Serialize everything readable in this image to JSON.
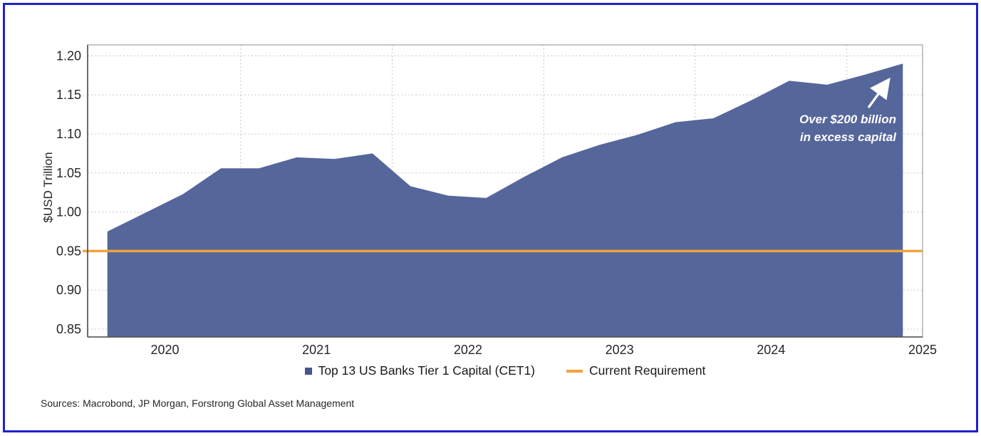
{
  "frame_color": "#2020CE",
  "sources_note": "Sources: Macrobond, JP Morgan, Forstrong Global Asset Management",
  "legend": {
    "items": [
      {
        "label": "Top 13 US Banks Tier 1 Capital (CET1)",
        "marker": "square",
        "color": "#46568E"
      },
      {
        "label": "Current Requirement",
        "marker": "line",
        "color": "#EFA43E"
      }
    ]
  },
  "annotation": {
    "line1": "Over $200 billion",
    "line2": "in excess capital",
    "color": "#FFFFFF"
  },
  "chart_data": {
    "type": "area",
    "title": "",
    "xlabel": "",
    "ylabel": "$USD Trillion",
    "grid": "dotted",
    "legend_position": "bottom",
    "xlim": [
      2019.99,
      2025.5
    ],
    "ylim": [
      0.84,
      1.214
    ],
    "yticks": [
      "0.85",
      "0.90",
      "0.95",
      "1.00",
      "1.05",
      "1.10",
      "1.15",
      "1.20"
    ],
    "xticks": [
      {
        "label": "2020",
        "x": 2020.5
      },
      {
        "label": "2021",
        "x": 2021.5
      },
      {
        "label": "2022",
        "x": 2022.5
      },
      {
        "label": "2023",
        "x": 2023.5
      },
      {
        "label": "2024",
        "x": 2024.5
      },
      {
        "label": "2025",
        "x": 2025.5
      }
    ],
    "x_gridlines": [
      2021,
      2022,
      2023,
      2024,
      2025
    ],
    "series": [
      {
        "name": "Top 13 US Banks Tier 1 Capital (CET1)",
        "type": "area",
        "color": "#55669A",
        "x": [
          "2020 Q1",
          "2020 Q2",
          "2020 Q3",
          "2020 Q4",
          "2021 Q1",
          "2021 Q2",
          "2021 Q3",
          "2021 Q4",
          "2022 Q1",
          "2022 Q2",
          "2022 Q3",
          "2022 Q4",
          "2023 Q1",
          "2023 Q2",
          "2023 Q3",
          "2023 Q4",
          "2024 Q1",
          "2024 Q2",
          "2024 Q3",
          "2024 Q4",
          "2025 Q1",
          "2025 Q2"
        ],
        "x_numeric": [
          2020.12,
          2020.37,
          2020.62,
          2020.87,
          2021.12,
          2021.37,
          2021.62,
          2021.87,
          2022.12,
          2022.37,
          2022.62,
          2022.87,
          2023.12,
          2023.37,
          2023.62,
          2023.87,
          2024.12,
          2024.37,
          2024.62,
          2024.87,
          2025.12,
          2025.37
        ],
        "values": [
          0.975,
          0.999,
          1.023,
          1.056,
          1.056,
          1.07,
          1.068,
          1.075,
          1.033,
          1.021,
          1.018,
          1.045,
          1.07,
          1.086,
          1.099,
          1.115,
          1.12,
          1.143,
          1.168,
          1.163,
          1.176,
          1.19
        ]
      },
      {
        "name": "Current Requirement",
        "type": "hline",
        "color": "#EFA43E",
        "value": 0.95
      }
    ]
  }
}
